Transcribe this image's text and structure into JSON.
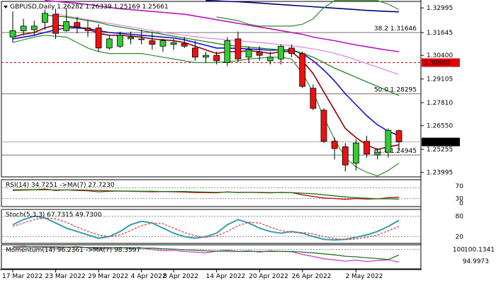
{
  "chart_data": [
    {
      "type": "candlestick",
      "title": "GBPUSD,Daily  1.26282 1.26339 1.25169 1.25661",
      "symbol": "GBPUSD",
      "timeframe": "Daily",
      "ohlc_header": {
        "open": 1.26282,
        "high": 1.26339,
        "low": 1.25169,
        "close": 1.25661
      },
      "x_tick_labels": [
        "17 Mar 2022",
        "23 Mar 2022",
        "29 Mar 2022",
        "4 Apr 2022",
        "8 Apr 2022",
        "14 Apr 2022",
        "20 Apr 2022",
        "26 Apr 2022",
        "2 May 2022"
      ],
      "y_tick_labels": [
        "1.32995",
        "1.31645",
        "1.30400",
        "1.29105",
        "1.27810",
        "1.26550",
        "1.25255",
        "1.23995"
      ],
      "ylim": [
        1.2375,
        1.3335
      ],
      "current_price": {
        "label": "1.25661",
        "value": 1.25661
      },
      "fib_levels": [
        {
          "label": "38.2 1.31646",
          "value": 1.31646
        },
        {
          "label": "50.0 1.28295",
          "value": 1.28295
        },
        {
          "label": "61.8 1.24945",
          "value": 1.24945
        }
      ],
      "pivot_level": {
        "label": "1.30000",
        "value": 1.3
      },
      "candles": [
        {
          "o": 1.314,
          "h": 1.328,
          "l": 1.311,
          "c": 1.3175
        },
        {
          "o": 1.3175,
          "h": 1.324,
          "l": 1.315,
          "c": 1.32
        },
        {
          "o": 1.318,
          "h": 1.323,
          "l": 1.315,
          "c": 1.32
        },
        {
          "o": 1.322,
          "h": 1.329,
          "l": 1.318,
          "c": 1.327
        },
        {
          "o": 1.3265,
          "h": 1.3295,
          "l": 1.313,
          "c": 1.316
        },
        {
          "o": 1.3175,
          "h": 1.33,
          "l": 1.317,
          "c": 1.3225
        },
        {
          "o": 1.322,
          "h": 1.325,
          "l": 1.316,
          "c": 1.3195
        },
        {
          "o": 1.319,
          "h": 1.323,
          "l": 1.314,
          "c": 1.3175
        },
        {
          "o": 1.319,
          "h": 1.321,
          "l": 1.306,
          "c": 1.308
        },
        {
          "o": 1.308,
          "h": 1.315,
          "l": 1.307,
          "c": 1.313
        },
        {
          "o": 1.309,
          "h": 1.317,
          "l": 1.308,
          "c": 1.315
        },
        {
          "o": 1.313,
          "h": 1.317,
          "l": 1.31,
          "c": 1.314
        },
        {
          "o": 1.313,
          "h": 1.318,
          "l": 1.31,
          "c": 1.313
        },
        {
          "o": 1.312,
          "h": 1.317,
          "l": 1.307,
          "c": 1.31
        },
        {
          "o": 1.309,
          "h": 1.313,
          "l": 1.306,
          "c": 1.312
        },
        {
          "o": 1.31,
          "h": 1.313,
          "l": 1.307,
          "c": 1.311
        },
        {
          "o": 1.3105,
          "h": 1.314,
          "l": 1.308,
          "c": 1.309
        },
        {
          "o": 1.308,
          "h": 1.312,
          "l": 1.301,
          "c": 1.303
        },
        {
          "o": 1.303,
          "h": 1.306,
          "l": 1.3,
          "c": 1.304
        },
        {
          "o": 1.304,
          "h": 1.306,
          "l": 1.299,
          "c": 1.301
        },
        {
          "o": 1.3,
          "h": 1.314,
          "l": 1.298,
          "c": 1.312
        },
        {
          "o": 1.313,
          "h": 1.317,
          "l": 1.3,
          "c": 1.302
        },
        {
          "o": 1.303,
          "h": 1.309,
          "l": 1.3,
          "c": 1.307
        },
        {
          "o": 1.306,
          "h": 1.309,
          "l": 1.301,
          "c": 1.304
        },
        {
          "o": 1.301,
          "h": 1.306,
          "l": 1.299,
          "c": 1.303
        },
        {
          "o": 1.302,
          "h": 1.31,
          "l": 1.299,
          "c": 1.309
        },
        {
          "o": 1.308,
          "h": 1.31,
          "l": 1.303,
          "c": 1.305
        },
        {
          "o": 1.305,
          "h": 1.306,
          "l": 1.286,
          "c": 1.287
        },
        {
          "o": 1.286,
          "h": 1.288,
          "l": 1.274,
          "c": 1.275
        },
        {
          "o": 1.274,
          "h": 1.275,
          "l": 1.256,
          "c": 1.257
        },
        {
          "o": 1.257,
          "h": 1.259,
          "l": 1.247,
          "c": 1.253
        },
        {
          "o": 1.254,
          "h": 1.256,
          "l": 1.2405,
          "c": 1.244
        },
        {
          "o": 1.245,
          "h": 1.258,
          "l": 1.241,
          "c": 1.256
        },
        {
          "o": 1.257,
          "h": 1.26,
          "l": 1.248,
          "c": 1.25
        },
        {
          "o": 1.2495,
          "h": 1.253,
          "l": 1.247,
          "c": 1.251
        },
        {
          "o": 1.251,
          "h": 1.264,
          "l": 1.248,
          "c": 1.263
        },
        {
          "o": 1.2628,
          "h": 1.2634,
          "l": 1.2517,
          "c": 1.2566
        }
      ],
      "moving_averages": [
        {
          "name": "MA (red/brown)",
          "color": "#8b0000",
          "values": [
            1.314,
            1.3155,
            1.3165,
            1.319,
            1.3205,
            1.32,
            1.3195,
            1.3185,
            1.316,
            1.315,
            1.315,
            1.3145,
            1.314,
            1.313,
            1.3125,
            1.312,
            1.311,
            1.309,
            1.307,
            1.305,
            1.306,
            1.306,
            1.3065,
            1.306,
            1.305,
            1.306,
            1.306,
            1.301,
            1.294,
            1.284,
            1.274,
            1.264,
            1.259,
            1.255,
            1.2525,
            1.254,
            1.255
          ]
        },
        {
          "name": "MA (blue)",
          "color": "#1010d0",
          "values": [
            1.313,
            1.314,
            1.315,
            1.3165,
            1.318,
            1.319,
            1.319,
            1.3185,
            1.3175,
            1.3165,
            1.316,
            1.3155,
            1.315,
            1.3145,
            1.314,
            1.3135,
            1.3125,
            1.311,
            1.3095,
            1.308,
            1.308,
            1.3078,
            1.3075,
            1.3072,
            1.3068,
            1.307,
            1.307,
            1.305,
            1.301,
            1.296,
            1.29,
            1.283,
            1.277,
            1.271,
            1.266,
            1.2625,
            1.26
          ]
        },
        {
          "name": "MA (green)",
          "color": "#107a10",
          "values": [
            null,
            null,
            null,
            1.326,
            1.3255,
            1.325,
            1.324,
            1.323,
            1.322,
            1.3205,
            1.3195,
            1.3185,
            1.3175,
            1.3165,
            1.3155,
            1.3145,
            1.3135,
            1.3125,
            1.3115,
            1.3105,
            1.3095,
            1.309,
            1.3085,
            1.308,
            1.3075,
            1.307,
            1.3065,
            1.305,
            1.303,
            1.3,
            1.297,
            1.2945,
            1.292,
            1.2895,
            1.287,
            1.2845,
            1.282
          ]
        },
        {
          "name": "MA (pink)",
          "color": "#e080e0",
          "values": [
            null,
            null,
            null,
            null,
            1.327,
            1.3255,
            1.3245,
            1.3235,
            1.3225,
            1.3215,
            1.3205,
            1.3195,
            1.3185,
            1.3175,
            1.3165,
            1.3158,
            1.315,
            1.3142,
            1.3135,
            1.313,
            1.3125,
            1.312,
            1.3115,
            1.311,
            1.3105,
            1.3098,
            1.3092,
            1.3085,
            1.3075,
            1.3065,
            1.305,
            1.3035,
            1.3015,
            1.2995,
            1.2975,
            1.2955,
            1.2935
          ]
        },
        {
          "name": "MA (magenta)",
          "color": "#c010c0",
          "values": [
            null,
            null,
            null,
            1.334,
            1.3335,
            1.333,
            1.3325,
            1.3318,
            1.331,
            1.3302,
            1.3295,
            1.329,
            1.3285,
            1.328,
            1.3275,
            1.327,
            1.3265,
            1.3255,
            1.3245,
            1.3235,
            1.3225,
            1.3215,
            1.3205,
            1.3195,
            1.3185,
            1.3175,
            1.3165,
            1.3155,
            1.314,
            1.313,
            1.312,
            1.3108,
            1.3097,
            1.3087,
            1.3077,
            1.3068,
            1.306
          ]
        },
        {
          "name": "MA (navy)",
          "color": "#000080",
          "values": [
            null,
            null,
            null,
            null,
            null,
            null,
            null,
            null,
            null,
            null,
            null,
            null,
            null,
            null,
            null,
            null,
            null,
            null,
            1.334,
            1.3338,
            1.3335,
            1.3333,
            1.333,
            1.3326,
            1.3322,
            1.3318,
            1.3314,
            1.331,
            1.3306,
            1.3302,
            1.3298,
            1.3294,
            1.329,
            1.3286,
            1.3283,
            1.328,
            1.3278
          ]
        },
        {
          "name": "Bollinger upper",
          "color": "#2e8b2e",
          "values": [
            null,
            null,
            null,
            null,
            null,
            null,
            null,
            null,
            null,
            null,
            null,
            null,
            null,
            null,
            null,
            null,
            null,
            null,
            null,
            1.325,
            1.324,
            1.323,
            1.321,
            1.32,
            1.32,
            1.32,
            1.32,
            1.321,
            1.324,
            1.33,
            1.334,
            1.334,
            1.334,
            1.334,
            1.334,
            1.332,
            1.329
          ]
        },
        {
          "name": "Bollinger lower",
          "color": "#2e8b2e",
          "values": [
            1.311,
            1.3125,
            1.314,
            1.315,
            1.3145,
            1.314,
            1.311,
            1.308,
            1.306,
            1.305,
            1.305,
            1.305,
            1.305,
            1.304,
            1.303,
            1.302,
            1.301,
            1.3,
            1.3,
            1.3,
            1.3005,
            1.301,
            1.302,
            1.3025,
            1.303,
            1.303,
            1.302,
            1.294,
            1.284,
            1.27,
            1.258,
            1.248,
            1.243,
            1.24,
            1.238,
            1.241,
            1.245
          ]
        }
      ]
    },
    {
      "type": "line",
      "title": "RSI(14) 34.7251  ->MA(7) 27.7230",
      "y_tick_labels": [
        "70",
        "30",
        "0"
      ],
      "ylim": [
        0,
        100
      ],
      "reference_levels": [
        70,
        30
      ],
      "series": [
        {
          "name": "RSI(14)",
          "color": "#c00000",
          "values": [
            62,
            63,
            63,
            65,
            60,
            62,
            60,
            59,
            55,
            57,
            58,
            57,
            56,
            55,
            56,
            55,
            54,
            52,
            52,
            51,
            55,
            52,
            53,
            52,
            51,
            53,
            52,
            44,
            38,
            32,
            30,
            27,
            30,
            28,
            29,
            33,
            34.7
          ]
        },
        {
          "name": "MA(7)",
          "color": "#1a7a1a",
          "values": [
            60,
            61,
            62,
            62,
            62,
            62,
            62,
            61,
            60,
            59,
            58,
            58,
            57,
            57,
            56,
            56,
            56,
            55,
            54,
            53,
            54,
            53,
            53,
            53,
            52,
            52,
            52,
            50,
            48,
            44,
            40,
            36,
            33,
            31,
            29,
            29,
            27.7
          ]
        }
      ]
    },
    {
      "type": "line",
      "title": "Stoch(5,3,3) 67.7315 49.7300",
      "y_tick_labels": [
        "80",
        "20"
      ],
      "ylim": [
        0,
        100
      ],
      "reference_levels": [
        80,
        20
      ],
      "series": [
        {
          "name": "%K",
          "color": "#30a0b0",
          "values": [
            55,
            70,
            80,
            75,
            60,
            45,
            35,
            25,
            15,
            20,
            35,
            55,
            65,
            60,
            45,
            30,
            20,
            15,
            20,
            30,
            55,
            70,
            60,
            45,
            35,
            30,
            35,
            30,
            20,
            12,
            10,
            12,
            18,
            25,
            35,
            50,
            67.7
          ]
        },
        {
          "name": "%D",
          "color": "#e04040",
          "values": [
            50,
            60,
            70,
            75,
            72,
            62,
            48,
            35,
            25,
            20,
            25,
            38,
            52,
            60,
            58,
            45,
            32,
            22,
            18,
            22,
            35,
            52,
            62,
            60,
            48,
            38,
            33,
            32,
            28,
            20,
            14,
            11,
            13,
            18,
            25,
            37,
            49.7
          ]
        }
      ]
    },
    {
      "type": "line",
      "title": "Momentum(14) 96.2361  ->MA(7) 98.3597",
      "y_tick_labels": [
        "100",
        "100.1341",
        "94.9973"
      ],
      "ylim": [
        94.2,
        101.4
      ],
      "reference_levels": [
        100
      ],
      "series": [
        {
          "name": "Momentum(14)",
          "color": "#d040d0",
          "values": [
            100.8,
            101.0,
            100.6,
            100.7,
            100.4,
            100.6,
            100.9,
            100.5,
            100.2,
            100.4,
            100.6,
            100.3,
            100.5,
            100.0,
            99.6,
            99.7,
            99.4,
            99.2,
            99.0,
            99.5,
            99.8,
            99.4,
            99.6,
            99.2,
            99.6,
            99.4,
            99.3,
            98.5,
            97.9,
            97.2,
            96.9,
            96.5,
            96.8,
            96.4,
            96.7,
            96.9,
            96.2
          ]
        },
        {
          "name": "MA(7)",
          "color": "#1a7a1a",
          "values": [
            100.6,
            100.7,
            100.8,
            100.8,
            100.8,
            100.7,
            100.7,
            100.6,
            100.6,
            100.5,
            100.5,
            100.5,
            100.4,
            100.4,
            100.2,
            100.1,
            99.9,
            99.8,
            99.6,
            99.5,
            99.5,
            99.4,
            99.4,
            99.4,
            99.4,
            99.4,
            99.4,
            99.2,
            99.0,
            98.7,
            98.4,
            98.0,
            97.8,
            97.5,
            97.3,
            97.0,
            98.36
          ]
        }
      ]
    }
  ]
}
